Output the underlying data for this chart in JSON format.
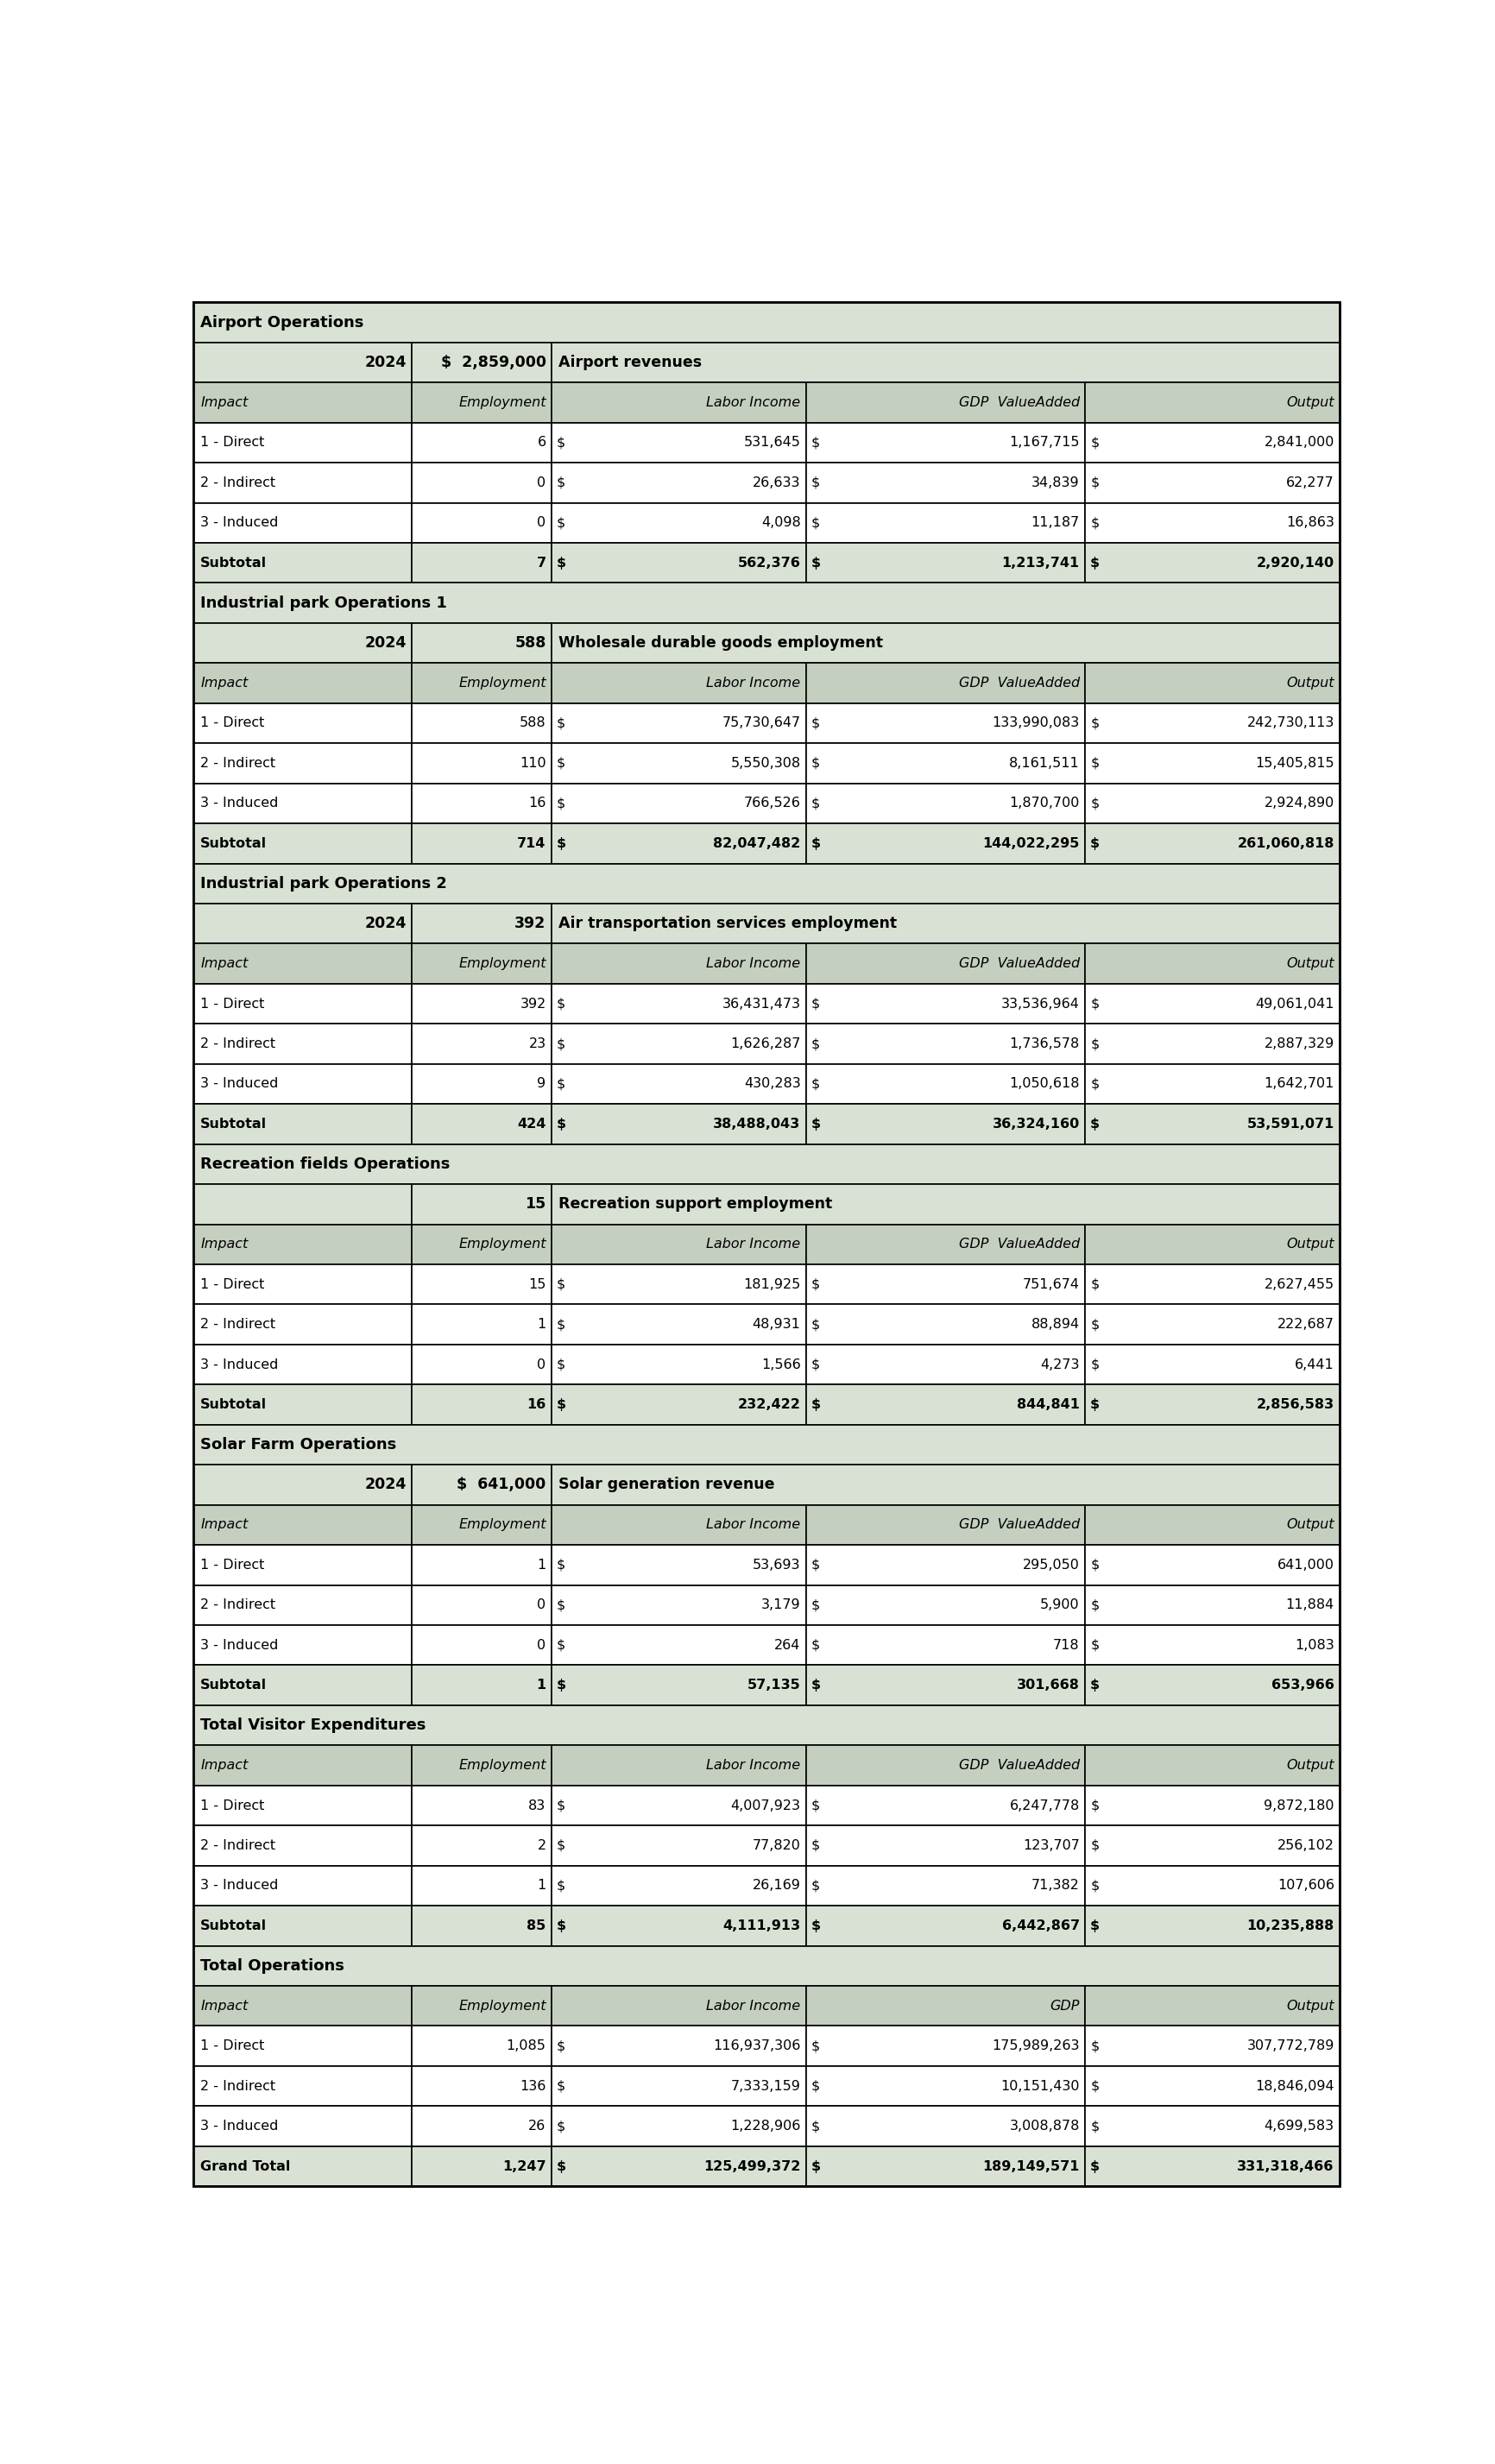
{
  "bg_light": "#d9e1d4",
  "bg_header": "#c5cfc0",
  "white": "#ffffff",
  "border_color": "#000000",
  "sections": [
    {
      "section_title": "Airport Operations",
      "has_year_row": true,
      "year_label": "2024",
      "year_value": "$  2,859,000",
      "descriptor": "Airport revenues",
      "col_headers": [
        "Impact",
        "Employment",
        "Labor Income",
        "GDP  ValueAdded",
        "Output"
      ],
      "rows": [
        [
          "1 - Direct",
          "6",
          "$",
          "531,645",
          "$",
          "1,167,715",
          "$",
          "2,841,000"
        ],
        [
          "2 - Indirect",
          "0",
          "$",
          "26,633",
          "$",
          "34,839",
          "$",
          "62,277"
        ],
        [
          "3 - Induced",
          "0",
          "$",
          "4,098",
          "$",
          "11,187",
          "$",
          "16,863"
        ],
        [
          "Subtotal",
          "7",
          "$",
          "562,376",
          "$",
          "1,213,741",
          "$",
          "2,920,140"
        ]
      ],
      "subtotal_idx": 3
    },
    {
      "section_title": "Industrial park Operations 1",
      "has_year_row": true,
      "year_label": "2024",
      "year_value": "588",
      "descriptor": "Wholesale durable goods employment",
      "col_headers": [
        "Impact",
        "Employment",
        "Labor Income",
        "GDP  ValueAdded",
        "Output"
      ],
      "rows": [
        [
          "1 - Direct",
          "588",
          "$",
          "75,730,647",
          "$",
          "133,990,083",
          "$",
          "242,730,113"
        ],
        [
          "2 - Indirect",
          "110",
          "$",
          "5,550,308",
          "$",
          "8,161,511",
          "$",
          "15,405,815"
        ],
        [
          "3 - Induced",
          "16",
          "$",
          "766,526",
          "$",
          "1,870,700",
          "$",
          "2,924,890"
        ],
        [
          "Subtotal",
          "714",
          "$",
          "82,047,482",
          "$",
          "144,022,295",
          "$",
          "261,060,818"
        ]
      ],
      "subtotal_idx": 3
    },
    {
      "section_title": "Industrial park Operations 2",
      "has_year_row": true,
      "year_label": "2024",
      "year_value": "392",
      "descriptor": "Air transportation services employment",
      "col_headers": [
        "Impact",
        "Employment",
        "Labor Income",
        "GDP  ValueAdded",
        "Output"
      ],
      "rows": [
        [
          "1 - Direct",
          "392",
          "$",
          "36,431,473",
          "$",
          "33,536,964",
          "$",
          "49,061,041"
        ],
        [
          "2 - Indirect",
          "23",
          "$",
          "1,626,287",
          "$",
          "1,736,578",
          "$",
          "2,887,329"
        ],
        [
          "3 - Induced",
          "9",
          "$",
          "430,283",
          "$",
          "1,050,618",
          "$",
          "1,642,701"
        ],
        [
          "Subtotal",
          "424",
          "$",
          "38,488,043",
          "$",
          "36,324,160",
          "$",
          "53,591,071"
        ]
      ],
      "subtotal_idx": 3
    },
    {
      "section_title": "Recreation fields Operations",
      "has_year_row": true,
      "year_label": "",
      "year_value": "15",
      "descriptor": "Recreation support employment",
      "col_headers": [
        "Impact",
        "Employment",
        "Labor Income",
        "GDP  ValueAdded",
        "Output"
      ],
      "rows": [
        [
          "1 - Direct",
          "15",
          "$",
          "181,925",
          "$",
          "751,674",
          "$",
          "2,627,455"
        ],
        [
          "2 - Indirect",
          "1",
          "$",
          "48,931",
          "$",
          "88,894",
          "$",
          "222,687"
        ],
        [
          "3 - Induced",
          "0",
          "$",
          "1,566",
          "$",
          "4,273",
          "$",
          "6,441"
        ],
        [
          "Subtotal",
          "16",
          "$",
          "232,422",
          "$",
          "844,841",
          "$",
          "2,856,583"
        ]
      ],
      "subtotal_idx": 3
    },
    {
      "section_title": "Solar Farm Operations",
      "has_year_row": true,
      "year_label": "2024",
      "year_value": "$  641,000",
      "descriptor": "Solar generation revenue",
      "col_headers": [
        "Impact",
        "Employment",
        "Labor Income",
        "GDP  ValueAdded",
        "Output"
      ],
      "rows": [
        [
          "1 - Direct",
          "1",
          "$",
          "53,693",
          "$",
          "295,050",
          "$",
          "641,000"
        ],
        [
          "2 - Indirect",
          "0",
          "$",
          "3,179",
          "$",
          "5,900",
          "$",
          "11,884"
        ],
        [
          "3 - Induced",
          "0",
          "$",
          "264",
          "$",
          "718",
          "$",
          "1,083"
        ],
        [
          "Subtotal",
          "1",
          "$",
          "57,135",
          "$",
          "301,668",
          "$",
          "653,966"
        ]
      ],
      "subtotal_idx": 3
    },
    {
      "section_title": "Total Visitor Expenditures",
      "has_year_row": false,
      "year_label": "",
      "year_value": "",
      "descriptor": "",
      "col_headers": [
        "Impact",
        "Employment",
        "Labor Income",
        "GDP  ValueAdded",
        "Output"
      ],
      "rows": [
        [
          "1 - Direct",
          "83",
          "$",
          "4,007,923",
          "$",
          "6,247,778",
          "$",
          "9,872,180"
        ],
        [
          "2 - Indirect",
          "2",
          "$",
          "77,820",
          "$",
          "123,707",
          "$",
          "256,102"
        ],
        [
          "3 - Induced",
          "1",
          "$",
          "26,169",
          "$",
          "71,382",
          "$",
          "107,606"
        ],
        [
          "Subtotal",
          "85",
          "$",
          "4,111,913",
          "$",
          "6,442,867",
          "$",
          "10,235,888"
        ]
      ],
      "subtotal_idx": 3
    },
    {
      "section_title": "Total Operations",
      "has_year_row": false,
      "year_label": "",
      "year_value": "",
      "descriptor": "",
      "col_headers": [
        "Impact",
        "Employment",
        "Labor Income",
        "GDP",
        "Output"
      ],
      "rows": [
        [
          "1 - Direct",
          "1,085",
          "$",
          "116,937,306",
          "$",
          "175,989,263",
          "$",
          "307,772,789"
        ],
        [
          "2 - Indirect",
          "136",
          "$",
          "7,333,159",
          "$",
          "10,151,430",
          "$",
          "18,846,094"
        ],
        [
          "3 - Induced",
          "26",
          "$",
          "1,228,906",
          "$",
          "3,008,878",
          "$",
          "4,699,583"
        ],
        [
          "Grand Total",
          "1,247",
          "$",
          "125,499,372",
          "$",
          "189,149,571",
          "$",
          "331,318,466"
        ]
      ],
      "subtotal_idx": 3
    }
  ]
}
